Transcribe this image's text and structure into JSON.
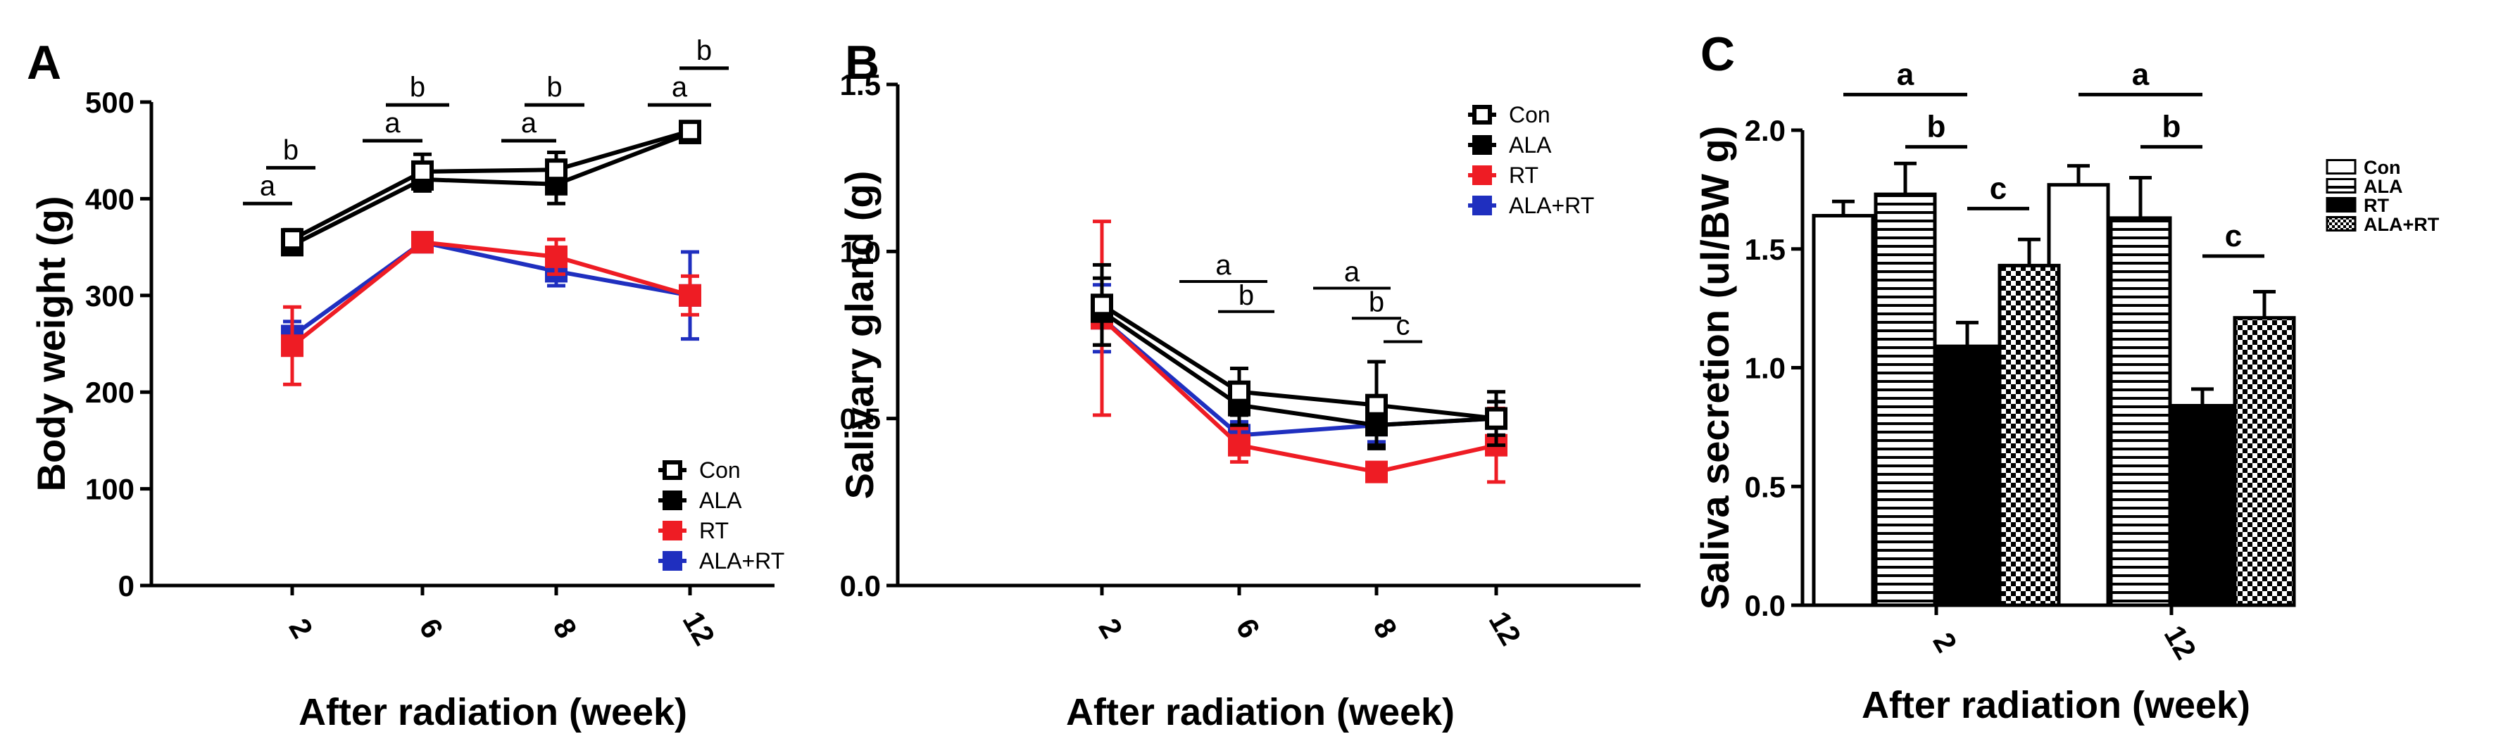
{
  "chart_data": [
    {
      "panel": "A",
      "type": "line",
      "ylabel": "Body weight (g)",
      "xlabel": "After radiation (week)",
      "ylim": [
        0,
        500
      ],
      "yticks": [
        "0",
        "100",
        "200",
        "300",
        "400",
        "500"
      ],
      "categories": [
        "2",
        "6",
        "8",
        "12"
      ],
      "series": [
        {
          "name": "Con",
          "color": "#000000",
          "marker": "open-square",
          "values": [
            358,
            428,
            430,
            470
          ],
          "errors": [
            10,
            18,
            18,
            8
          ]
        },
        {
          "name": "ALA",
          "color": "#000000",
          "marker": "filled-square",
          "values": [
            352,
            420,
            415,
            468
          ],
          "errors": [
            8,
            12,
            20,
            8
          ]
        },
        {
          "name": "RT",
          "color": "#ee1c24",
          "marker": "filled-square",
          "values": [
            248,
            355,
            340,
            300
          ],
          "errors": [
            40,
            8,
            18,
            20
          ]
        },
        {
          "name": "ALA+RT",
          "color": "#1f2fbf",
          "marker": "filled-square",
          "values": [
            258,
            355,
            325,
            300
          ],
          "errors": [
            15,
            8,
            15,
            45
          ]
        }
      ],
      "significance": [
        {
          "label": "a",
          "from": "2",
          "to": "2",
          "level": 395
        },
        {
          "label": "b",
          "from": "2",
          "to": "2",
          "level": 432
        },
        {
          "label": "a",
          "from": "6",
          "to": "6",
          "level": 460
        },
        {
          "label": "b",
          "from": "6",
          "to": "6",
          "level": 497
        },
        {
          "label": "a",
          "from": "8",
          "to": "8",
          "level": 460
        },
        {
          "label": "b",
          "from": "8",
          "to": "8",
          "level": 497
        },
        {
          "label": "a",
          "from": "12",
          "to": "12",
          "level": 497
        },
        {
          "label": "b",
          "from": "12",
          "to": "12",
          "level": 535
        }
      ],
      "legend_position": "bottom-right"
    },
    {
      "panel": "B",
      "type": "line",
      "ylabel": "Salivary gland (g)",
      "xlabel": "After radiation (week)",
      "ylim": [
        0,
        1.5
      ],
      "yticks": [
        "0.0",
        "0.5",
        "1.0",
        "1.5"
      ],
      "categories": [
        "2",
        "6",
        "8",
        "12"
      ],
      "series": [
        {
          "name": "Con",
          "color": "#000000",
          "marker": "open-square",
          "values": [
            0.84,
            0.58,
            0.54,
            0.5
          ],
          "errors": [
            0.12,
            0.07,
            0.13,
            0.08
          ]
        },
        {
          "name": "ALA",
          "color": "#000000",
          "marker": "filled-square",
          "values": [
            0.82,
            0.54,
            0.48,
            0.5
          ],
          "errors": [
            0.1,
            0.06,
            0.06,
            0.05
          ]
        },
        {
          "name": "RT",
          "color": "#ee1c24",
          "marker": "filled-square",
          "values": [
            0.8,
            0.42,
            0.34,
            0.42
          ],
          "errors": [
            0.29,
            0.05,
            0.02,
            0.11
          ]
        },
        {
          "name": "ALA+RT",
          "color": "#1f2fbf",
          "marker": "filled-square",
          "values": [
            0.8,
            0.45,
            0.48,
            0.5
          ],
          "errors": [
            0.1,
            0.04,
            0.05,
            0.05
          ]
        }
      ],
      "significance": [
        {
          "label": "a",
          "from": "6",
          "to": "6",
          "level": 0.91
        },
        {
          "label": "b",
          "from": "6",
          "to": "6",
          "level": 0.82
        },
        {
          "label": "a",
          "from": "8",
          "to": "8",
          "level": 0.89
        },
        {
          "label": "b",
          "from": "8",
          "to": "8",
          "level": 0.8
        },
        {
          "label": "c",
          "from": "8",
          "to": "8",
          "level": 0.73
        }
      ],
      "legend_position": "top-right"
    },
    {
      "panel": "C",
      "type": "bar",
      "ylabel": "Saliva secretion (ul/BW g)",
      "xlabel": "After radiation (week)",
      "ylim": [
        0,
        2.0
      ],
      "yticks": [
        "0.0",
        "0.5",
        "1.0",
        "1.5",
        "2.0"
      ],
      "categories": [
        "2",
        "12"
      ],
      "series": [
        {
          "name": "Con",
          "pattern": "open",
          "values": [
            1.64,
            1.77
          ],
          "errors": [
            0.06,
            0.08
          ]
        },
        {
          "name": "ALA",
          "pattern": "horizontal-lines",
          "values": [
            1.73,
            1.63
          ],
          "errors": [
            0.13,
            0.17
          ]
        },
        {
          "name": "RT",
          "pattern": "solid",
          "values": [
            1.09,
            0.84
          ],
          "errors": [
            0.1,
            0.07
          ]
        },
        {
          "name": "ALA+RT",
          "pattern": "checker",
          "values": [
            1.43,
            1.21
          ],
          "errors": [
            0.11,
            0.11
          ]
        }
      ],
      "significance": [
        {
          "label": "a",
          "group": "2",
          "from_series": 0,
          "to_series": 2,
          "level": 2.15
        },
        {
          "label": "b",
          "group": "2",
          "from_series": 1,
          "to_series": 2,
          "level": 1.93
        },
        {
          "label": "c",
          "group": "2",
          "from_series": 2,
          "to_series": 3,
          "level": 1.67
        },
        {
          "label": "a",
          "group": "12",
          "from_series": 0,
          "to_series": 2,
          "level": 2.15
        },
        {
          "label": "b",
          "group": "12",
          "from_series": 1,
          "to_series": 2,
          "level": 1.93
        },
        {
          "label": "c",
          "group": "12",
          "from_series": 2,
          "to_series": 3,
          "level": 1.47
        }
      ],
      "legend_position": "top-right"
    }
  ]
}
